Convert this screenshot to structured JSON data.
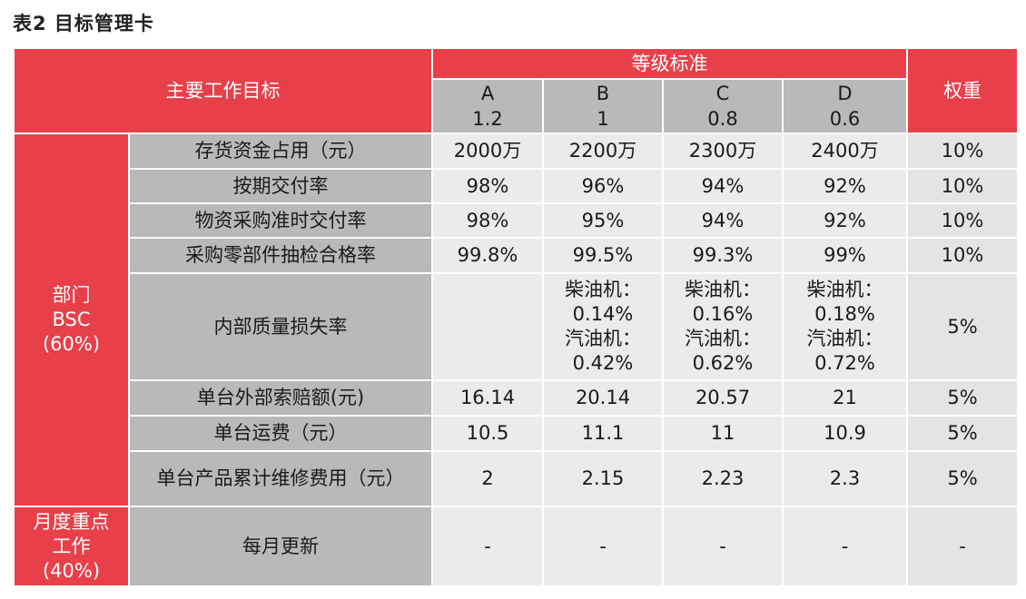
{
  "title": "表2  目标管理卡",
  "header": {
    "main_goal": "主要工作目标",
    "grade_standard": "等级标准",
    "weight": "权重",
    "grades": [
      {
        "letter": "A",
        "coef": "1.2"
      },
      {
        "letter": "B",
        "coef": "1"
      },
      {
        "letter": "C",
        "coef": "0.8"
      },
      {
        "letter": "D",
        "coef": "0.6"
      }
    ]
  },
  "group_bsc": {
    "line1": "部门",
    "line2": "BSC",
    "line3": "(60%)"
  },
  "group_monthly": {
    "line1": "月度重点",
    "line2": "工作",
    "line3": "(40%)"
  },
  "rows": [
    {
      "name": "存货资金占用（元）",
      "A": "2000万",
      "B": "2200万",
      "C": "2300万",
      "D": "2400万",
      "weight": "10%"
    },
    {
      "name": "按期交付率",
      "A": "98%",
      "B": "96%",
      "C": "94%",
      "D": "92%",
      "weight": "10%"
    },
    {
      "name": "物资采购准时交付率",
      "A": "98%",
      "B": "95%",
      "C": "94%",
      "D": "92%",
      "weight": "10%"
    },
    {
      "name": "采购零部件抽检合格率",
      "A": "99.8%",
      "B": "99.5%",
      "C": "99.3%",
      "D": "99%",
      "weight": "10%"
    },
    {
      "name": "内部质量损失率",
      "A": "",
      "B": {
        "l1": "柴油机：",
        "l2": "0.14%",
        "l3": "汽油机：",
        "l4": "0.42%"
      },
      "C": {
        "l1": "柴油机：",
        "l2": "0.16%",
        "l3": "汽油机：",
        "l4": "0.62%"
      },
      "D": {
        "l1": "柴油机：",
        "l2": "0.18%",
        "l3": "汽油机：",
        "l4": "0.72%"
      },
      "weight": "5%"
    },
    {
      "name": "单台外部索赔额(元)",
      "A": "16.14",
      "B": "20.14",
      "C": "20.57",
      "D": "21",
      "weight": "5%"
    },
    {
      "name": "单台运费（元）",
      "A": "10.5",
      "B": "11.1",
      "C": "11",
      "D": "10.9",
      "weight": "5%"
    },
    {
      "name": "单台产品累计维修费用（元）",
      "A": "2",
      "B": "2.15",
      "C": "2.23",
      "D": "2.3",
      "weight": "5%"
    }
  ],
  "monthly_row": {
    "name": "每月更新",
    "A": "-",
    "B": "-",
    "C": "-",
    "D": "-",
    "weight": "-"
  }
}
